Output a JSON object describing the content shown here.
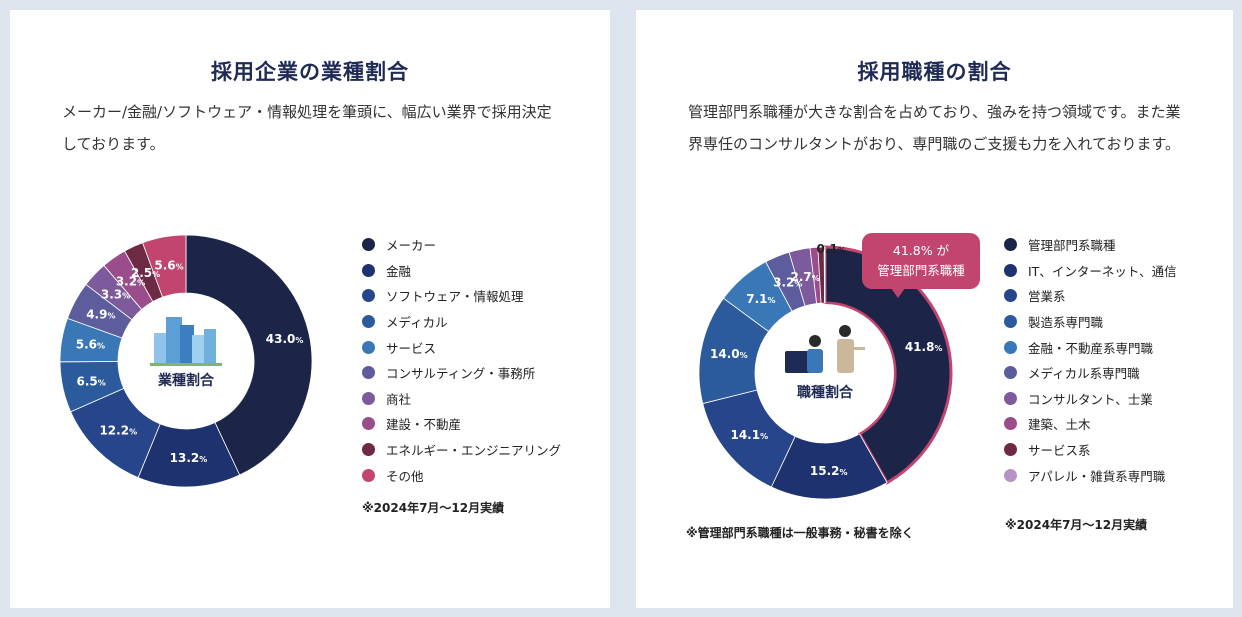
{
  "left_panel": {
    "title": "採用企業の業種割合",
    "description": "メーカー/金融/ソフトウェア・情報処理を筆頭に、幅広い業界で採用決定しております。",
    "center_label": "業種割合",
    "period_note": "※2024年7月〜12月実績"
  },
  "right_panel": {
    "title": "採用職種の割合",
    "description": "管理部門系職種が大きな割合を占めており、強みを持つ領域です。また業界専任のコンサルタントがおり、専門職のご支援も力を入れております。",
    "center_label": "職種割合",
    "callout_line1": "41.8% が",
    "callout_line2": "管理部門系職種",
    "exclusion_note": "※管理部門系職種は一般事務・秘書を除く",
    "period_note": "※2024年7月〜12月実績"
  },
  "colors": {
    "page_background": "#dfe5ef",
    "card_background": "#ffffff",
    "title": "#1f2a55",
    "callout": "#c2456f"
  },
  "chart_data": [
    {
      "type": "pie",
      "variant": "donut",
      "title": "業種割合",
      "unit": "%",
      "categories": [
        "メーカー",
        "金融",
        "ソフトウェア・情報処理",
        "メディカル",
        "サービス",
        "コンサルティング・事務所",
        "商社",
        "建設・不動産",
        "エネルギー・エンジニアリング",
        "その他"
      ],
      "values": [
        43.0,
        13.2,
        12.2,
        6.5,
        5.6,
        4.9,
        3.3,
        3.2,
        2.5,
        5.6
      ],
      "labels": [
        "43.0",
        "13.2",
        "12.2",
        "6.5",
        "5.6",
        "4.9",
        "3.3",
        "3.2",
        "2.5",
        "5.6"
      ],
      "colors": [
        "#1c2548",
        "#1f3270",
        "#27458a",
        "#2b5b9d",
        "#3a77b6",
        "#5d5d9e",
        "#7c5a9c",
        "#9a4d8a",
        "#6e2a45",
        "#c2456f"
      ],
      "legend_position": "right"
    },
    {
      "type": "pie",
      "variant": "donut",
      "title": "職種割合",
      "unit": "%",
      "categories": [
        "管理部門系職種",
        "IT、インターネット、通信",
        "営業系",
        "製造系専門職",
        "金融・不動産系専門職",
        "メディカル系専門職",
        "コンサルタント、士業",
        "建築、土木",
        "サービス系",
        "アパレル・雑貨系専門職"
      ],
      "values": [
        41.8,
        15.2,
        14.1,
        14.0,
        7.1,
        3.2,
        2.7,
        1.0,
        0.8,
        0.1
      ],
      "labels": [
        "41.8",
        "15.2",
        "14.1",
        "14.0",
        "7.1",
        "3.2",
        "2.7",
        "1.0",
        "0.8",
        "0.1"
      ],
      "colors": [
        "#1c2548",
        "#1f3270",
        "#27458a",
        "#2b5b9d",
        "#3a77b6",
        "#5d5d9e",
        "#7c5a9c",
        "#9a4d8a",
        "#6e2a45",
        "#b792c4"
      ],
      "legend_position": "right"
    }
  ]
}
